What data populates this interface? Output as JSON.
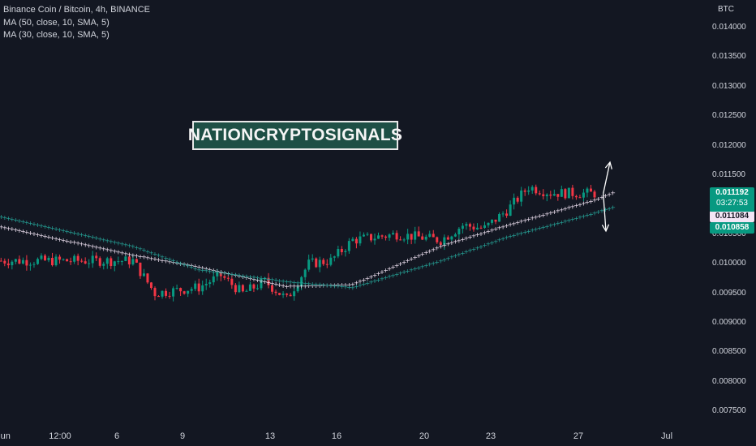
{
  "legend": {
    "title": "Binance Coin / Bitcoin, 4h, BINANCE",
    "ma1": "MA (50, close, 10, SMA, 5)",
    "ma2": "MA (30, close, 10, SMA, 5)"
  },
  "watermark": "NATIONCRYPTOSIGNALS",
  "price_axis": {
    "unit": "BTC",
    "ticks": [
      "0.014000",
      "0.013500",
      "0.013000",
      "0.012500",
      "0.012000",
      "0.011500",
      "0.011000",
      "0.010500",
      "0.010000",
      "0.009500",
      "0.009000",
      "0.008500",
      "0.008000",
      "0.007500"
    ]
  },
  "price_tags": {
    "last_price": "0.011192",
    "countdown": "03:27:53",
    "ma50": "0.011084",
    "ma30": "0.010858"
  },
  "colors": {
    "background": "#131722",
    "up": "#089981",
    "down": "#f23645",
    "ma50": "#f3e5f5",
    "ma30": "#26a69a",
    "text": "#d1d4dc"
  },
  "chart_data": {
    "type": "candlestick",
    "title": "Binance Coin / Bitcoin, 4h, BINANCE",
    "x_ticks": [
      "Jun",
      "12:00",
      "6",
      "9",
      "13",
      "16",
      "20",
      "23",
      "27",
      "Jul"
    ],
    "y_unit": "BTC",
    "ylim": [
      0.0073,
      0.0143
    ],
    "grid": false,
    "close_path": [
      {
        "x": "Jun",
        "y": 0.01005
      },
      {
        "x": "6",
        "y": 0.01005
      },
      {
        "x": "7",
        "y": 0.0095
      },
      {
        "x": "9",
        "y": 0.0096
      },
      {
        "x": "10",
        "y": 0.0098
      },
      {
        "x": "11",
        "y": 0.0095
      },
      {
        "x": "12",
        "y": 0.0097
      },
      {
        "x": "13",
        "y": 0.0094
      },
      {
        "x": "14",
        "y": 0.01
      },
      {
        "x": "15",
        "y": 0.01005
      },
      {
        "x": "16",
        "y": 0.0104
      },
      {
        "x": "18",
        "y": 0.0105
      },
      {
        "x": "20",
        "y": 0.0104
      },
      {
        "x": "21",
        "y": 0.01065
      },
      {
        "x": "22",
        "y": 0.0106
      },
      {
        "x": "23",
        "y": 0.0109
      },
      {
        "x": "24",
        "y": 0.0113
      },
      {
        "x": "25",
        "y": 0.0112
      },
      {
        "x": "27",
        "y": 0.01119
      }
    ],
    "series": [
      {
        "name": "MA (50, close, 10, SMA, 5)",
        "points": [
          {
            "x": "Jun",
            "y": 0.01063
          },
          {
            "x": "6",
            "y": 0.01015
          },
          {
            "x": "9",
            "y": 0.00995
          },
          {
            "x": "13",
            "y": 0.00962
          },
          {
            "x": "16",
            "y": 0.00965
          },
          {
            "x": "20",
            "y": 0.0103
          },
          {
            "x": "23",
            "y": 0.01065
          },
          {
            "x": "27",
            "y": 0.01108
          },
          {
            "x": "28",
            "y": 0.01123
          }
        ]
      },
      {
        "name": "MA (30, close, 10, SMA, 5)",
        "points": [
          {
            "x": "Jun",
            "y": 0.0108
          },
          {
            "x": "6",
            "y": 0.0103
          },
          {
            "x": "9",
            "y": 0.0099
          },
          {
            "x": "13",
            "y": 0.0097
          },
          {
            "x": "16",
            "y": 0.0096
          },
          {
            "x": "20",
            "y": 0.01005
          },
          {
            "x": "23",
            "y": 0.01045
          },
          {
            "x": "27",
            "y": 0.01086
          },
          {
            "x": "28",
            "y": 0.01098
          }
        ]
      }
    ]
  }
}
